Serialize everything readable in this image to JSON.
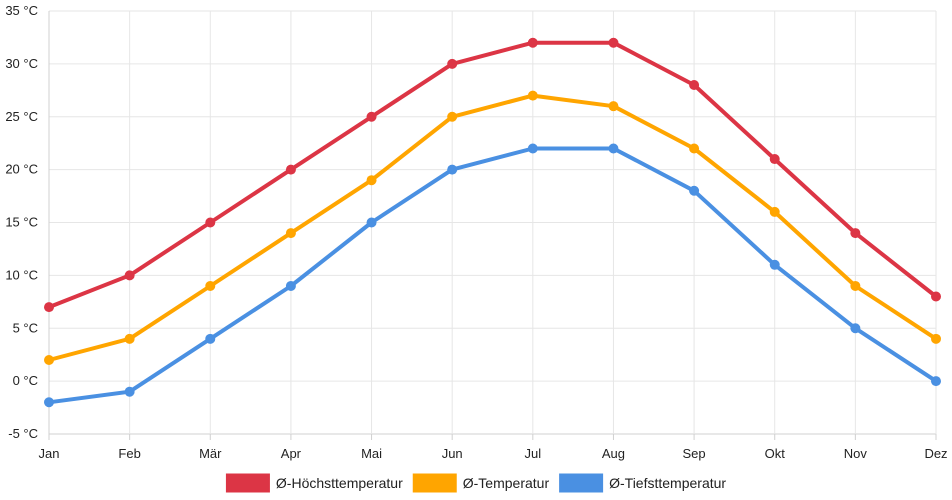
{
  "chart_data": {
    "type": "line",
    "categories": [
      "Jan",
      "Feb",
      "Mär",
      "Apr",
      "Mai",
      "Jun",
      "Jul",
      "Aug",
      "Sep",
      "Okt",
      "Nov",
      "Dez"
    ],
    "ylim": [
      -5,
      35
    ],
    "yticks": [
      -5,
      0,
      5,
      10,
      15,
      20,
      25,
      30,
      35
    ],
    "y_unit": "°C",
    "ytick_labels": [
      "-5 °C",
      "0 °C",
      "5 °C",
      "10 °C",
      "15 °C",
      "20 °C",
      "25 °C",
      "30 °C",
      "35 °C"
    ],
    "grid": true,
    "legend_position": "bottom",
    "title": "",
    "xlabel": "",
    "ylabel": "",
    "series": [
      {
        "name": "Ø-Höchsttemperatur",
        "color": "#dc3545",
        "values": [
          7,
          10,
          15,
          20,
          25,
          30,
          32,
          32,
          28,
          21,
          14,
          8
        ]
      },
      {
        "name": "Ø-Temperatur",
        "color": "#ffa500",
        "values": [
          2,
          4,
          9,
          14,
          19,
          25,
          27,
          26,
          22,
          16,
          9,
          4
        ]
      },
      {
        "name": "Ø-Tiefsttemperatur",
        "color": "#4a90e2",
        "values": [
          -2,
          -1,
          4,
          9,
          15,
          20,
          22,
          22,
          18,
          11,
          5,
          0
        ]
      }
    ]
  }
}
